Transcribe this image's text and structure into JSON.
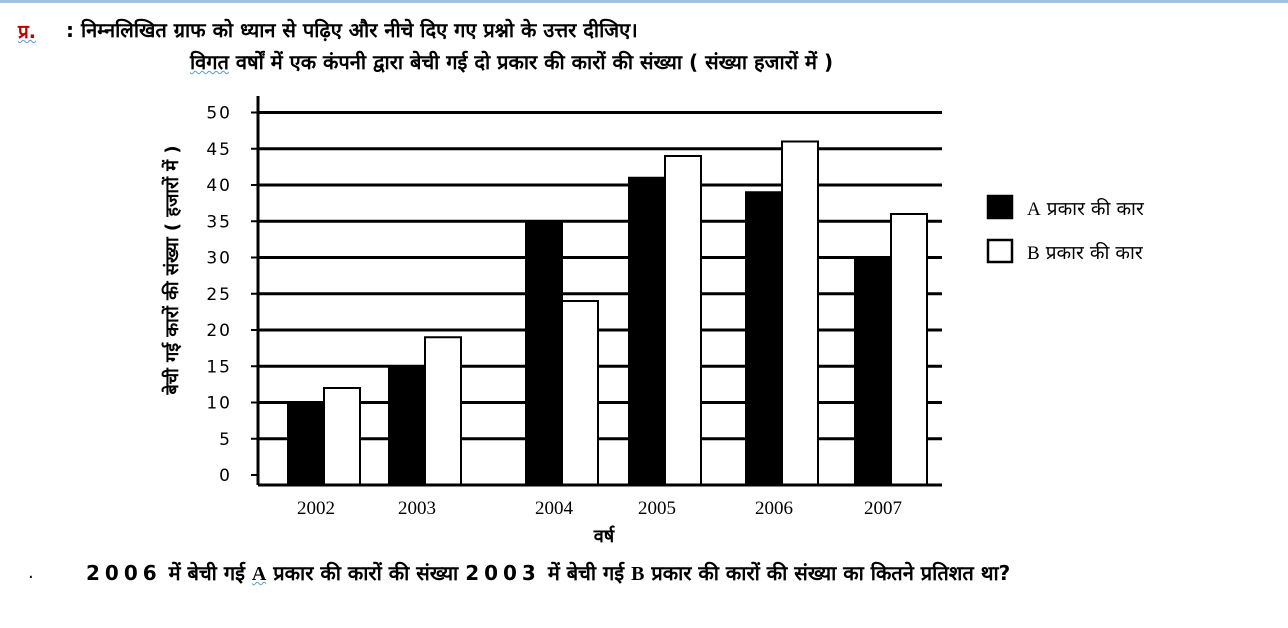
{
  "header": {
    "question_marker": "प्र.",
    "instruction": ": निम्नलिखित ग्राफ को ध्यान से पढ़िए और नीचे दिए गए प्रश्नो के उत्तर दीजिए।",
    "chart_title_first_word": "विगत",
    "chart_title_rest": " वर्षों में एक कंपनी द्वारा बेची गई दो प्रकार की कारों की संख्या ( संख्या हजारों में )"
  },
  "chart_data": {
    "type": "bar",
    "title": "विगत वर्षों में एक कंपनी द्वारा बेची गई दो प्रकार की कारों की संख्या ( संख्या हजारों में )",
    "categories": [
      "2002",
      "2003",
      "2004",
      "2005",
      "2006",
      "2007"
    ],
    "series": [
      {
        "name": "A प्रकार की कार",
        "color": "#000000",
        "values": [
          10,
          15,
          35,
          41,
          39,
          30
        ]
      },
      {
        "name": "B प्रकार की कार",
        "color": "#ffffff",
        "values": [
          12,
          19,
          24,
          44,
          46,
          36
        ]
      }
    ],
    "xlabel": "वर्ष",
    "ylabel": "बेची गई कारों की संख्या ( हजारों में )",
    "ylim": [
      0,
      50
    ],
    "yticks": [
      "0",
      "5",
      "10",
      "15",
      "20",
      "25",
      "30",
      "35",
      "40",
      "45",
      "50"
    ],
    "grid": true,
    "legend_placement": "right"
  },
  "question": {
    "bullet": ".",
    "year1": "2006",
    "part1": " में बेची गई ",
    "type_a": "A",
    "part2": " प्रकार की कारों की संख्या ",
    "year2": "2003",
    "part3": " में बेची गई ",
    "type_b": "B",
    "part4": " प्रकार की कारों की संख्या का कितने प्रतिशत था?"
  }
}
